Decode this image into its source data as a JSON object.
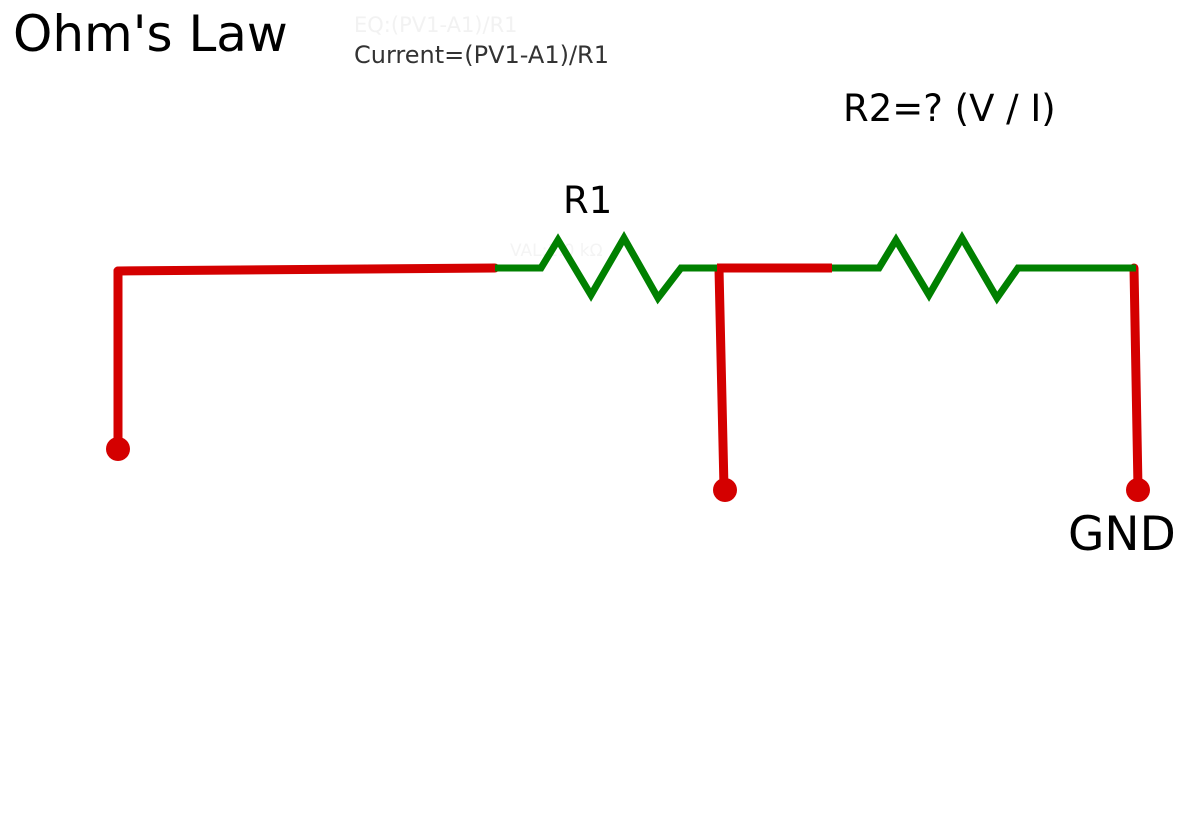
{
  "title": "Ohm's Law",
  "equation_faint": "EQ:(PV1-A1)/R1",
  "current_formula": "Current=(PV1-A1)/R1",
  "r2_label": "R2=?   (V / I)",
  "r1_label": "R1",
  "r1_value_faint": "VAL:1.0  kΩ",
  "gnd_label": "GND",
  "colors": {
    "wire": "#d40000",
    "resistor": "#008000",
    "text": "#000000"
  },
  "components": [
    {
      "name": "R1",
      "type": "resistor-icon"
    },
    {
      "name": "R2",
      "type": "resistor-icon"
    }
  ]
}
